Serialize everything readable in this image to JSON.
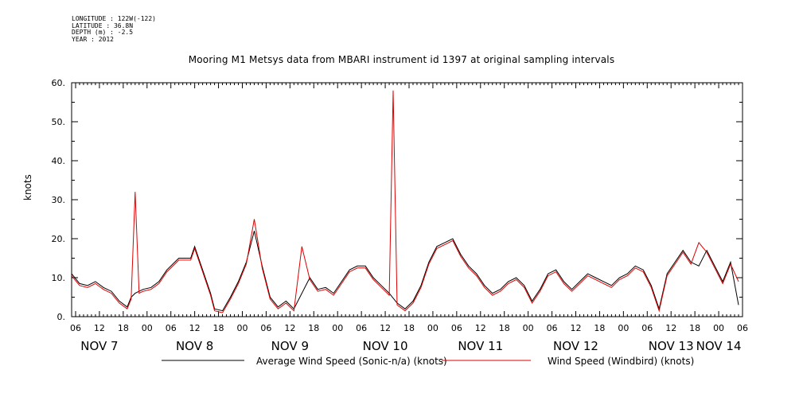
{
  "header": {
    "longitude": "LONGITUDE : 122W(-122)",
    "latitude": "LATITUDE : 36.8N",
    "depth": "DEPTH (m) : -2.5",
    "year": "YEAR : 2012"
  },
  "chart_data": {
    "type": "line",
    "title": "Mooring M1 Metsys data from MBARI instrument id 1397 at original sampling intervals",
    "ylabel": "knots",
    "xlabel": "",
    "ylim": [
      0,
      60
    ],
    "y_ticks": [
      0,
      10,
      20,
      30,
      40,
      50,
      60
    ],
    "y_tick_labels": [
      "0.",
      "10.",
      "20.",
      "30.",
      "40.",
      "50.",
      "60."
    ],
    "x_unit": "hours since NOV 7 00:00",
    "xlim": [
      5,
      174
    ],
    "x_hour_ticks": [
      6,
      12,
      18,
      24,
      30,
      36,
      42,
      48,
      54,
      60,
      66,
      72,
      78,
      84,
      90,
      96,
      102,
      108,
      114,
      120,
      126,
      132,
      138,
      144,
      150,
      156,
      162,
      168,
      174
    ],
    "x_hour_tick_labels": [
      "06",
      "12",
      "18",
      "00",
      "06",
      "12",
      "18",
      "00",
      "06",
      "12",
      "18",
      "00",
      "06",
      "12",
      "18",
      "00",
      "06",
      "12",
      "18",
      "00",
      "06",
      "12",
      "18",
      "00",
      "06",
      "12",
      "18",
      "00",
      "06"
    ],
    "x_day_labels": [
      {
        "label": "NOV  7",
        "x": 12
      },
      {
        "label": "NOV  8",
        "x": 36
      },
      {
        "label": "NOV  9",
        "x": 60
      },
      {
        "label": "NOV 10",
        "x": 84
      },
      {
        "label": "NOV 11",
        "x": 108
      },
      {
        "label": "NOV 12",
        "x": 132
      },
      {
        "label": "NOV 13",
        "x": 156
      },
      {
        "label": "NOV 14",
        "x": 168
      }
    ],
    "grid": false,
    "legend": "bottom",
    "series": [
      {
        "name": "Average Wind Speed (Sonic-n/a) (knots)",
        "color": "#000000",
        "x": [
          5,
          7,
          9,
          11,
          13,
          15,
          17,
          19,
          20,
          21,
          23,
          25,
          27,
          29,
          31,
          32,
          33,
          35,
          36,
          38,
          40,
          41,
          43,
          45,
          47,
          49,
          51,
          53,
          55,
          57,
          59,
          61,
          63,
          65,
          67,
          69,
          71,
          73,
          75,
          77,
          79,
          81,
          83,
          85,
          87,
          89,
          91,
          93,
          95,
          97,
          99,
          101,
          103,
          105,
          107,
          109,
          111,
          113,
          115,
          117,
          119,
          121,
          123,
          125,
          127,
          129,
          131,
          133,
          135,
          137,
          139,
          141,
          143,
          145,
          147,
          149,
          151,
          153,
          155,
          157,
          159,
          161,
          163,
          165,
          167,
          169,
          171,
          173
        ],
        "values": [
          11,
          8.5,
          8,
          9,
          7.5,
          6.5,
          4,
          2.5,
          5,
          6,
          7,
          7.5,
          9,
          12,
          14,
          15,
          15,
          15,
          18,
          12,
          6,
          2,
          1.5,
          5,
          9,
          14,
          22,
          13,
          5,
          2.5,
          4,
          2,
          6,
          10,
          7,
          7.5,
          6,
          9,
          12,
          13,
          13,
          10,
          8,
          6,
          3.5,
          2,
          4,
          8,
          14,
          18,
          19,
          20,
          16,
          13,
          11,
          8,
          6,
          7,
          9,
          10,
          8,
          4,
          7,
          11,
          12,
          9,
          7,
          9,
          11,
          10,
          9,
          8,
          10,
          11,
          13,
          12,
          8,
          2,
          11,
          14,
          17,
          14,
          13,
          17,
          13,
          9,
          14,
          3
        ]
      },
      {
        "name": "Wind Speed (Windbird) (knots)",
        "color": "#dd0000",
        "x": [
          5,
          7,
          9,
          11,
          13,
          15,
          17,
          19,
          20,
          21,
          22,
          23,
          25,
          27,
          29,
          31,
          32,
          33,
          35,
          36,
          38,
          40,
          41,
          43,
          45,
          47,
          49,
          51,
          53,
          55,
          57,
          59,
          61,
          63,
          65,
          67,
          69,
          71,
          73,
          75,
          77,
          79,
          81,
          83,
          85,
          86,
          87,
          89,
          91,
          93,
          95,
          97,
          99,
          101,
          103,
          105,
          107,
          109,
          111,
          113,
          115,
          117,
          119,
          121,
          123,
          125,
          127,
          129,
          131,
          133,
          135,
          137,
          139,
          141,
          143,
          145,
          147,
          149,
          151,
          153,
          155,
          157,
          159,
          161,
          163,
          165,
          167,
          169,
          171,
          173
        ],
        "values": [
          10.5,
          8,
          7.5,
          8.5,
          7,
          6,
          3.5,
          2,
          4.5,
          32,
          6,
          6.5,
          7,
          8.5,
          11.5,
          13.5,
          14.5,
          14.5,
          14.5,
          17.5,
          11.5,
          5.5,
          1.5,
          1,
          4.5,
          8.5,
          13.5,
          25,
          12.5,
          4.5,
          2,
          3.5,
          1.5,
          18,
          9.5,
          6.5,
          7,
          5.5,
          8.5,
          11.5,
          12.5,
          12.5,
          9.5,
          7.5,
          5.5,
          58,
          3,
          1.5,
          3.5,
          7.5,
          13.5,
          17.5,
          18.5,
          19.5,
          15.5,
          12.5,
          10.5,
          7.5,
          5.5,
          6.5,
          8.5,
          9.5,
          7.5,
          3.5,
          6.5,
          10.5,
          11.5,
          8.5,
          6.5,
          8.5,
          10.5,
          9.5,
          8.5,
          7.5,
          9.5,
          10.5,
          12.5,
          11.5,
          7.5,
          1.5,
          10.5,
          13.5,
          16.5,
          13.5,
          19,
          16.5,
          12.5,
          8.5,
          13.5,
          9
        ]
      }
    ]
  }
}
